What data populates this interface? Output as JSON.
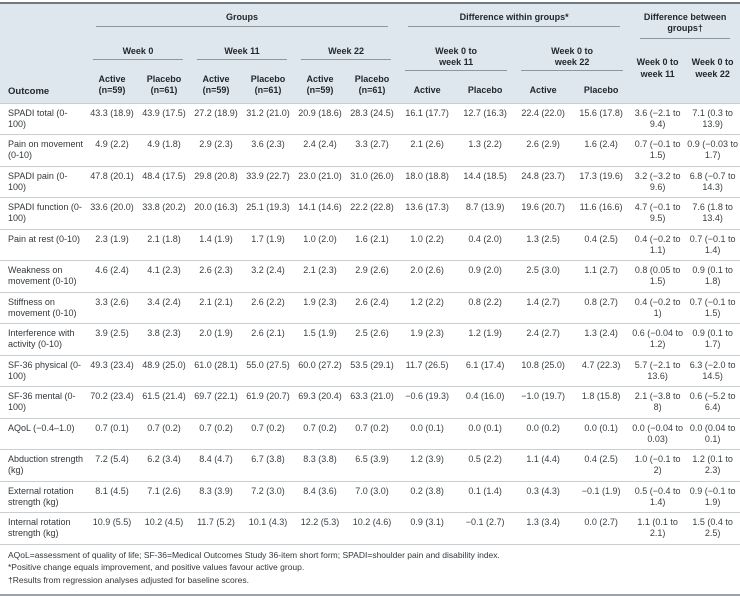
{
  "colors": {
    "header_bg": "#dfe7ee",
    "rule_dark": "#6e7a84",
    "rule_mid": "#8d979f",
    "rule_light": "#c9ced2",
    "bottom_rule": "#9aa3ab"
  },
  "table": {
    "outcome_header": "Outcome",
    "spanner_groups": "Groups",
    "spanner_within": "Difference within groups*",
    "spanner_between": "Difference between groups†",
    "weeks": [
      "Week 0",
      "Week 11",
      "Week 22",
      "Week 0 to week 11",
      "Week 0 to week 22"
    ],
    "between_cols": [
      "Week 0 to week 11",
      "Week 0 to week 22"
    ],
    "col_headers": [
      "Active (n=59)",
      "Placebo (n=61)",
      "Active (n=59)",
      "Placebo (n=61)",
      "Active (n=59)",
      "Placebo (n=61)",
      "Active",
      "Placebo",
      "Active",
      "Placebo"
    ],
    "rows": [
      {
        "outcome": "SPADI total (0-100)",
        "values": [
          "43.3 (18.9)",
          "43.9 (17.5)",
          "27.2 (18.9)",
          "31.2 (21.0)",
          "20.9 (18.6)",
          "28.3 (24.5)",
          "16.1 (17.7)",
          "12.7 (16.3)",
          "22.4 (22.0)",
          "15.6 (17.8)",
          "3.6 (−2.1 to 9.4)",
          "7.1 (0.3 to 13.9)"
        ]
      },
      {
        "outcome": "Pain on movement (0-10)",
        "values": [
          "4.9 (2.2)",
          "4.9 (1.8)",
          "2.9 (2.3)",
          "3.6 (2.3)",
          "2.4 (2.4)",
          "3.3 (2.7)",
          "2.1 (2.6)",
          "1.3 (2.2)",
          "2.6 (2.9)",
          "1.6 (2.4)",
          "0.7 (−0.1 to 1.5)",
          "0.9 (−0.03 to 1.7)"
        ]
      },
      {
        "outcome": "SPADI pain (0-100)",
        "values": [
          "47.8 (20.1)",
          "48.4 (17.5)",
          "29.8 (20.8)",
          "33.9 (22.7)",
          "23.0 (21.0)",
          "31.0 (26.0)",
          "18.0 (18.8)",
          "14.4 (18.5)",
          "24.8 (23.7)",
          "17.3 (19.6)",
          "3.2 (−3.2 to 9.6)",
          "6.8 (−0.7 to 14.3)"
        ]
      },
      {
        "outcome": "SPADI function (0-100)",
        "values": [
          "33.6 (20.0)",
          "33.8 (20.2)",
          "20.0 (16.3)",
          "25.1 (19.3)",
          "14.1 (14.6)",
          "22.2 (22.8)",
          "13.6 (17.3)",
          "8.7 (13.9)",
          "19.6 (20.7)",
          "11.6 (16.6)",
          "4.7 (−0.1 to 9.5)",
          "7.6 (1.8 to 13.4)"
        ]
      },
      {
        "outcome": "Pain at rest (0-10)",
        "values": [
          "2.3 (1.9)",
          "2.1 (1.8)",
          "1.4 (1.9)",
          "1.7 (1.9)",
          "1.0 (2.0)",
          "1.6 (2.1)",
          "1.0 (2.2)",
          "0.4 (2.0)",
          "1.3 (2.5)",
          "0.4 (2.5)",
          "0.4 (−0.2 to 1.1)",
          "0.7 (−0.1 to 1.4)"
        ]
      },
      {
        "outcome": "Weakness on movement (0-10)",
        "values": [
          "4.6 (2.4)",
          "4.1 (2.3)",
          "2.6 (2.3)",
          "3.2 (2.4)",
          "2.1 (2.3)",
          "2.9 (2.6)",
          "2.0 (2.6)",
          "0.9 (2.0)",
          "2.5 (3.0)",
          "1.1 (2.7)",
          "0.8 (0.05 to 1.5)",
          "0.9 (0.1 to 1.8)"
        ]
      },
      {
        "outcome": "Stiffness on movement (0-10)",
        "values": [
          "3.3 (2.6)",
          "3.4 (2.4)",
          "2.1 (2.1)",
          "2.6 (2.2)",
          "1.9 (2.3)",
          "2.6 (2.4)",
          "1.2 (2.2)",
          "0.8 (2.2)",
          "1.4 (2.7)",
          "0.8 (2.7)",
          "0.4 (−0.2 to 1)",
          "0.7 (−0.1 to 1.5)"
        ]
      },
      {
        "outcome": "Interference with activity (0-10)",
        "values": [
          "3.9 (2.5)",
          "3.8 (2.3)",
          "2.0 (1.9)",
          "2.6 (2.1)",
          "1.5 (1.9)",
          "2.5 (2.6)",
          "1.9 (2.3)",
          "1.2 (1.9)",
          "2.4 (2.7)",
          "1.3 (2.4)",
          "0.6 (−0.04 to 1.2)",
          "0.9 (0.1 to 1.7)"
        ]
      },
      {
        "outcome": "SF-36 physical (0-100)",
        "values": [
          "49.3 (23.4)",
          "48.9 (25.0)",
          "61.0 (28.1)",
          "55.0 (27.5)",
          "60.0 (27.2)",
          "53.5 (29.1)",
          "11.7 (26.5)",
          "6.1 (17.4)",
          "10.8 (25.0)",
          "4.7 (22.3)",
          "5.7 (−2.1 to 13.6)",
          "6.3 (−2.0 to 14.5)"
        ]
      },
      {
        "outcome": "SF-36 mental (0-100)",
        "values": [
          "70.2 (23.4)",
          "61.5 (21.4)",
          "69.7 (22.1)",
          "61.9 (20.7)",
          "69.3 (20.4)",
          "63.3 (21.0)",
          "−0.6 (19.3)",
          "0.4 (16.0)",
          "−1.0 (19.7)",
          "1.8 (15.8)",
          "2.1 (−3.8 to 8)",
          "0.6 (−5.2 to 6.4)"
        ]
      },
      {
        "outcome": "AQoL (−0.4–1.0)",
        "values": [
          "0.7 (0.1)",
          "0.7 (0.2)",
          "0.7 (0.2)",
          "0.7 (0.2)",
          "0.7 (0.2)",
          "0.7 (0.2)",
          "0.0 (0.1)",
          "0.0 (0.1)",
          "0.0 (0.2)",
          "0.0 (0.1)",
          "0.0 (−0.04 to 0.03)",
          "0.0 (0.04 to 0.1)"
        ]
      },
      {
        "outcome": "Abduction strength (kg)",
        "values": [
          "7.2 (5.4)",
          "6.2 (3.4)",
          "8.4 (4.7)",
          "6.7 (3.8)",
          "8.3 (3.8)",
          "6.5 (3.9)",
          "1.2 (3.9)",
          "0.5 (2.2)",
          "1.1 (4.4)",
          "0.4 (2.5)",
          "1.0 (−0.1 to 2)",
          "1.2 (0.1 to 2.3)"
        ]
      },
      {
        "outcome": "External rotation strength (kg)",
        "values": [
          "8.1 (4.5)",
          "7.1 (2.6)",
          "8.3 (3.9)",
          "7.2 (3.0)",
          "8.4 (3.6)",
          "7.0 (3.0)",
          "0.2 (3.8)",
          "0.1 (1.4)",
          "0.3 (4.3)",
          "−0.1 (1.9)",
          "0.5 (−0.4 to 1.4)",
          "0.9 (−0.1 to 1.9)"
        ]
      },
      {
        "outcome": "Internal rotation strength (kg)",
        "values": [
          "10.9 (5.5)",
          "10.2 (4.5)",
          "11.7 (5.2)",
          "10.1 (4.3)",
          "12.2 (5.3)",
          "10.2 (4.6)",
          "0.9 (3.1)",
          "−0.1 (2.7)",
          "1.3 (3.4)",
          "0.0 (2.7)",
          "1.1 (0.1 to 2.1)",
          "1.5 (0.4 to 2.5)"
        ]
      }
    ],
    "footnotes": [
      "AQoL=assessment of quality of life; SF-36=Medical Outcomes Study 36-item short form; SPADI=shoulder pain and disability index.",
      "*Positive change equals improvement, and positive values favour active group.",
      "†Results from regression analyses adjusted for baseline scores."
    ]
  }
}
